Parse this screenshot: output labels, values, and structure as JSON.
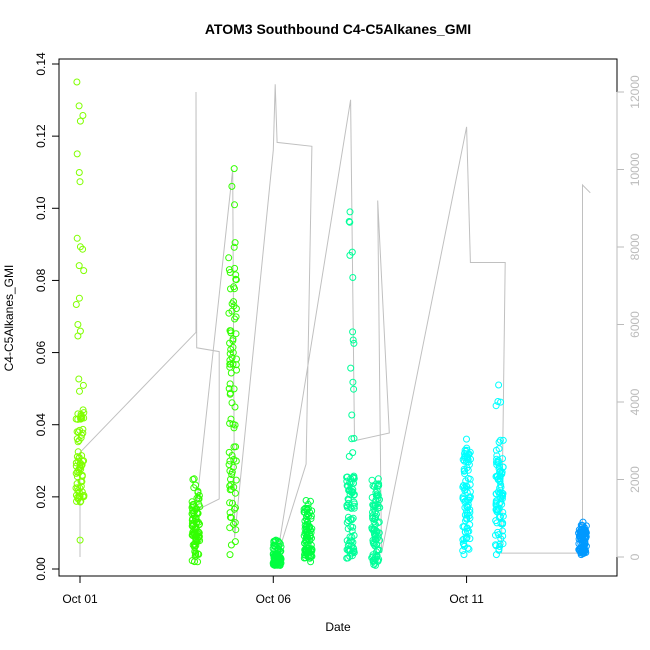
{
  "chart_data": {
    "type": "scatter",
    "title": "ATOM3 Southbound C4-C5Alkanes_GMI",
    "xlabel": "Date",
    "ylabel": "C4-C5Alkanes_GMI",
    "x_ticks": [
      {
        "label": "Oct 01",
        "day": 1
      },
      {
        "label": "Oct 06",
        "day": 6
      },
      {
        "label": "Oct 11",
        "day": 11
      }
    ],
    "xlim_days": [
      1,
      14.4
    ],
    "ylim": [
      0,
      0.14
    ],
    "y_ticks": [
      0.0,
      0.02,
      0.04,
      0.06,
      0.08,
      0.1,
      0.12,
      0.14
    ],
    "y_tick_labels": [
      "0.00",
      "0.02",
      "0.04",
      "0.06",
      "0.08",
      "0.10",
      "0.12",
      "0.14"
    ],
    "y2lim": [
      0,
      12000
    ],
    "y2_ticks": [
      0,
      2000,
      4000,
      6000,
      8000,
      10000,
      12000
    ],
    "y2_tick_labels": [
      "0",
      "2000",
      "4000",
      "6000",
      "8000",
      "10000",
      "12000"
    ],
    "colors": {
      "flight_line": "#c0c0c0",
      "lime": "#80ff00",
      "green": "#33ff00",
      "spring": "#00ff40",
      "mint": "#00ff99",
      "cyan": "#00ffff",
      "azure": "#0099ff"
    },
    "series": [
      {
        "day": 1.0,
        "y_min": 0.008,
        "y_max": 0.135,
        "dense": [
          0.018,
          0.045
        ],
        "color": "lime"
      },
      {
        "day": 4.0,
        "y_min": 0.002,
        "y_max": 0.025,
        "dense": [
          0.004,
          0.02
        ],
        "color": "green"
      },
      {
        "day": 4.95,
        "y_min": 0.004,
        "y_max": 0.111,
        "dense": [
          0.006,
          0.088
        ],
        "color": "green"
      },
      {
        "day": 6.1,
        "y_min": 0.001,
        "y_max": 0.008,
        "dense": [
          0.001,
          0.004
        ],
        "color": "spring"
      },
      {
        "day": 6.9,
        "y_min": 0.002,
        "y_max": 0.019,
        "dense": [
          0.003,
          0.017
        ],
        "color": "spring"
      },
      {
        "day": 8.0,
        "y_min": 0.003,
        "y_max": 0.099,
        "dense": [
          0.003,
          0.027
        ],
        "color": "mint"
      },
      {
        "day": 8.65,
        "y_min": 0.001,
        "y_max": 0.025,
        "dense": [
          0.002,
          0.024
        ],
        "color": "mint"
      },
      {
        "day": 11.0,
        "y_min": 0.004,
        "y_max": 0.036,
        "dense": [
          0.005,
          0.033
        ],
        "color": "cyan"
      },
      {
        "day": 11.85,
        "y_min": 0.004,
        "y_max": 0.051,
        "dense": [
          0.005,
          0.032
        ],
        "color": "cyan"
      },
      {
        "day": 14.0,
        "y_min": 0.004,
        "y_max": 0.013,
        "dense": [
          0.004,
          0.011
        ],
        "color": "azure"
      }
    ],
    "altitude_trace": [
      {
        "day": 1.0,
        "alt": 0
      },
      {
        "day": 1.0,
        "alt": 2700
      },
      {
        "day": 4.0,
        "alt": 5800
      },
      {
        "day": 4.0,
        "alt": 12000
      },
      {
        "day": 4.02,
        "alt": 5400
      },
      {
        "day": 4.6,
        "alt": 5300
      },
      {
        "day": 4.6,
        "alt": 1500
      },
      {
        "day": 4.0,
        "alt": 1200
      },
      {
        "day": 4.95,
        "alt": 10000
      },
      {
        "day": 5.0,
        "alt": 500
      },
      {
        "day": 6.0,
        "alt": 10500
      },
      {
        "day": 6.05,
        "alt": 12200
      },
      {
        "day": 6.1,
        "alt": 10700
      },
      {
        "day": 7.0,
        "alt": 10600
      },
      {
        "day": 6.85,
        "alt": 2400
      },
      {
        "day": 6.1,
        "alt": 0
      },
      {
        "day": 8.0,
        "alt": 11800
      },
      {
        "day": 8.1,
        "alt": 3000
      },
      {
        "day": 9.0,
        "alt": 3200
      },
      {
        "day": 8.7,
        "alt": 9200
      },
      {
        "day": 8.8,
        "alt": 100
      },
      {
        "day": 11.0,
        "alt": 11100
      },
      {
        "day": 11.1,
        "alt": 7600
      },
      {
        "day": 12.0,
        "alt": 7600
      },
      {
        "day": 11.9,
        "alt": 100
      },
      {
        "day": 14.0,
        "alt": 100
      },
      {
        "day": 14.0,
        "alt": 9600
      },
      {
        "day": 14.2,
        "alt": 9400
      }
    ]
  }
}
